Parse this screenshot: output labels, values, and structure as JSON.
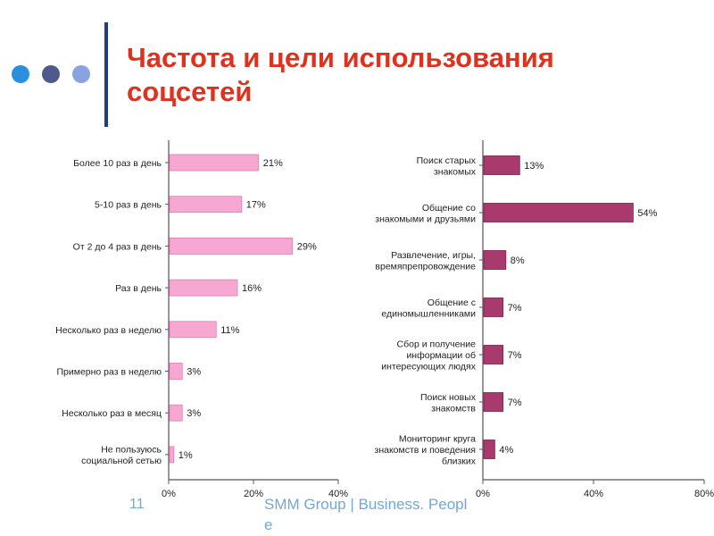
{
  "slide": {
    "title_line1": "Частота и цели использования",
    "title_line2": "соцсетей",
    "page_number": "11",
    "footer": "SMM Group | Business. People"
  },
  "colors": {
    "title": "#e0301e",
    "accent_bar": "#1f3c8c",
    "dot1": "#2b8fe0",
    "dot2": "#4d5a8e",
    "dot3": "#8aa2e0",
    "left_bars": "#f7a8d2",
    "right_bars": "#a93a6e",
    "footer": "#6fa8dc"
  },
  "chart_data": [
    {
      "type": "bar",
      "orientation": "horizontal",
      "categories": [
        [
          "Более 10 раз в день"
        ],
        [
          "5-10 раз в день"
        ],
        [
          "От 2 до 4 раз в день"
        ],
        [
          "Раз в день"
        ],
        [
          "Несколько раз в неделю"
        ],
        [
          "Примерно раз в неделю"
        ],
        [
          "Несколько раз в месяц"
        ],
        [
          "Не пользуюсь",
          "социальной сетью"
        ]
      ],
      "values": [
        21,
        17,
        29,
        16,
        11,
        3,
        3,
        1
      ],
      "value_labels": [
        "21%",
        "17%",
        "29%",
        "16%",
        "11%",
        "3%",
        "3%",
        "1%"
      ],
      "xlim": [
        0,
        40
      ],
      "xticks": [
        "0%",
        "20%",
        "40%"
      ],
      "grid": false,
      "legend": "none"
    },
    {
      "type": "bar",
      "orientation": "horizontal",
      "categories": [
        [
          "Поиск старых",
          "знакомых"
        ],
        [
          "Общение со",
          "знакомыми и друзьями"
        ],
        [
          "Развлечение, игры,",
          "времяпрепровождение"
        ],
        [
          "Общение с",
          "единомышленниками"
        ],
        [
          "Сбор и получение",
          "информации об",
          "интересующих людях"
        ],
        [
          "Поиск новых",
          "знакомств"
        ],
        [
          "Мониторинг круга",
          "знакомств и поведения",
          "близких"
        ]
      ],
      "values": [
        13,
        54,
        8,
        7,
        7,
        7,
        4
      ],
      "value_labels": [
        "13%",
        "54%",
        "8%",
        "7%",
        "7%",
        "7%",
        "4%"
      ],
      "xlim": [
        0,
        80
      ],
      "xticks": [
        "0%",
        "40%",
        "80%"
      ],
      "grid": false,
      "legend": "none"
    }
  ]
}
